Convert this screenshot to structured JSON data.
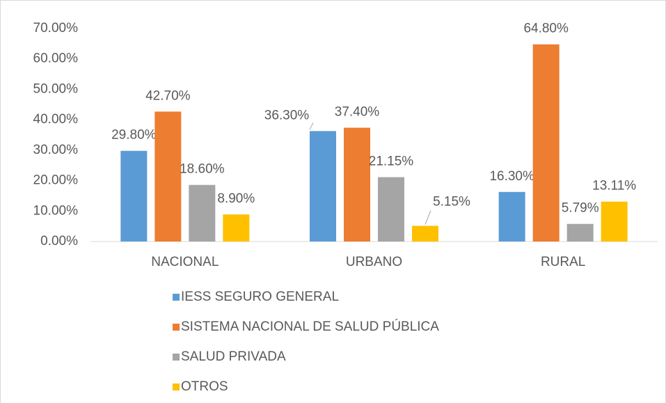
{
  "chart_data": {
    "type": "bar",
    "categories": [
      "NACIONAL",
      "URBANO",
      "RURAL"
    ],
    "series": [
      {
        "name": "IESS SEGURO GENERAL",
        "color": "#5b9bd5",
        "values": [
          29.8,
          36.3,
          16.3
        ],
        "value_labels": [
          "29.80%",
          "36.30%",
          "16.30%"
        ]
      },
      {
        "name": "SISTEMA NACIONAL DE SALUD PÚBLICA",
        "color": "#ed7d31",
        "values": [
          42.7,
          37.4,
          64.8
        ],
        "value_labels": [
          "42.70%",
          "37.40%",
          "64.80%"
        ]
      },
      {
        "name": "SALUD PRIVADA",
        "color": "#a5a5a5",
        "values": [
          18.6,
          21.15,
          5.79
        ],
        "value_labels": [
          "18.60%",
          "21.15%",
          "5.79%"
        ]
      },
      {
        "name": "OTROS",
        "color": "#ffc000",
        "values": [
          8.9,
          5.15,
          13.11
        ],
        "value_labels": [
          "8.90%",
          "5.15%",
          "13.11%"
        ]
      }
    ],
    "ylim": [
      0,
      70
    ],
    "yticks": [
      {
        "value": 0,
        "label": "0.00%"
      },
      {
        "value": 10,
        "label": "10.00%"
      },
      {
        "value": 20,
        "label": "20.00%"
      },
      {
        "value": 30,
        "label": "30.00%"
      },
      {
        "value": 40,
        "label": "40.00%"
      },
      {
        "value": 50,
        "label": "50.00%"
      },
      {
        "value": 60,
        "label": "60.00%"
      },
      {
        "value": 70,
        "label": "70.00%"
      }
    ],
    "legend": "bottom"
  }
}
